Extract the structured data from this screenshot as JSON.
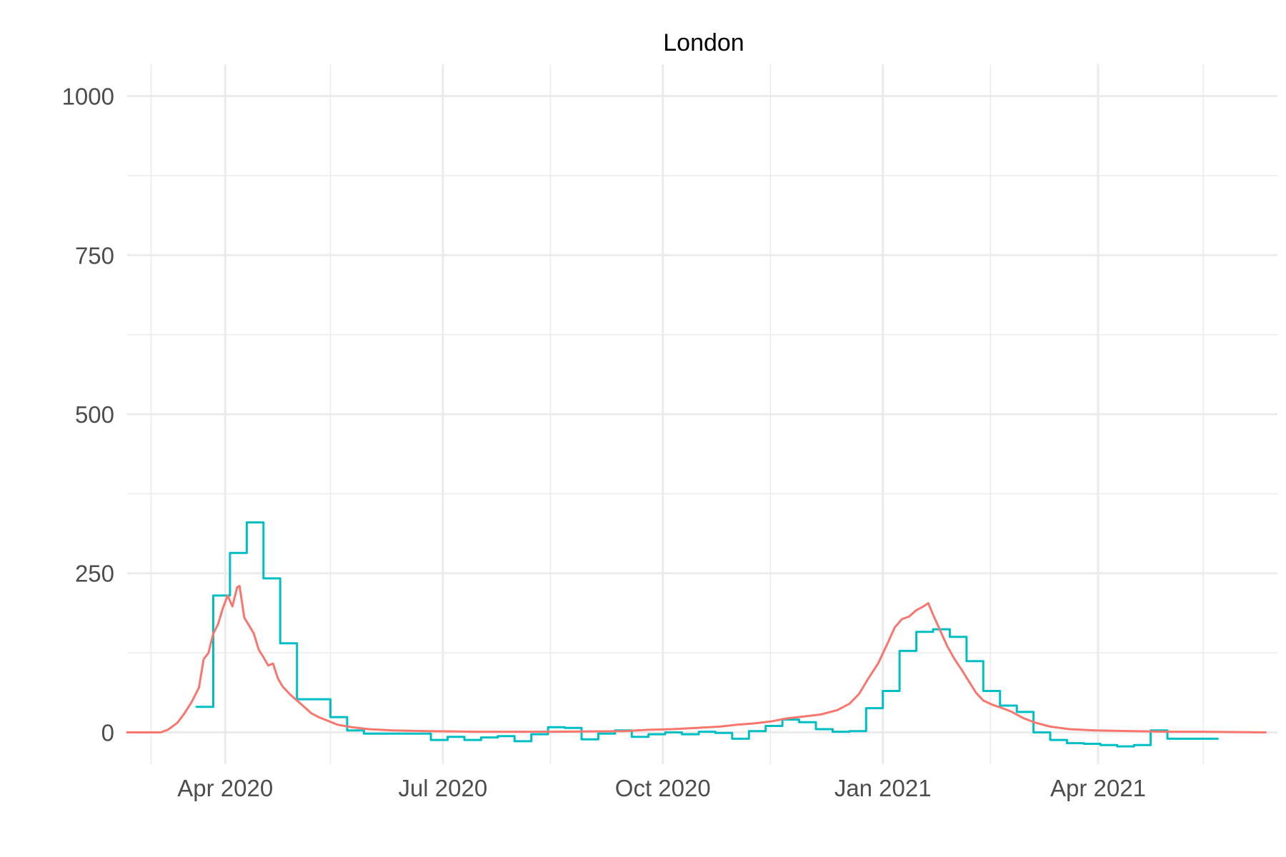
{
  "chart_data": {
    "type": "line",
    "title": "London",
    "xlabel": "",
    "ylabel": "",
    "x_range": [
      "2020-02-20",
      "2021-06-15"
    ],
    "ylim": [
      -50,
      1050
    ],
    "y_ticks": [
      0,
      250,
      500,
      750,
      1000
    ],
    "y_tick_labels": [
      "0",
      "250",
      "500",
      "750",
      "1000"
    ],
    "x_ticks": [
      {
        "date": "2020-04-01",
        "label": "Apr 2020"
      },
      {
        "date": "2020-07-01",
        "label": "Jul 2020"
      },
      {
        "date": "2020-10-01",
        "label": "Oct 2020"
      },
      {
        "date": "2021-01-01",
        "label": "Jan 2021"
      },
      {
        "date": "2021-04-01",
        "label": "Apr 2021"
      }
    ],
    "x_minor_ticks": [
      "2020-03-01",
      "2020-05-15",
      "2020-08-15",
      "2020-11-15",
      "2021-02-15",
      "2021-05-15"
    ],
    "grid": true,
    "legend": "none",
    "series": [
      {
        "color": "#00bfc4",
        "style": "step",
        "points": [
          [
            "2020-03-20",
            40
          ],
          [
            "2020-03-27",
            215
          ],
          [
            "2020-04-03",
            282
          ],
          [
            "2020-04-10",
            330
          ],
          [
            "2020-04-17",
            242
          ],
          [
            "2020-04-24",
            140
          ],
          [
            "2020-05-01",
            52
          ],
          [
            "2020-05-08",
            52
          ],
          [
            "2020-05-15",
            24
          ],
          [
            "2020-05-22",
            3
          ],
          [
            "2020-05-29",
            -2
          ],
          [
            "2020-06-05",
            -2
          ],
          [
            "2020-06-12",
            -2
          ],
          [
            "2020-06-19",
            -2
          ],
          [
            "2020-06-26",
            -12
          ],
          [
            "2020-07-03",
            -7
          ],
          [
            "2020-07-10",
            -12
          ],
          [
            "2020-07-17",
            -8
          ],
          [
            "2020-07-24",
            -6
          ],
          [
            "2020-07-31",
            -14
          ],
          [
            "2020-08-07",
            -3
          ],
          [
            "2020-08-14",
            8
          ],
          [
            "2020-08-21",
            7
          ],
          [
            "2020-08-28",
            -11
          ],
          [
            "2020-09-04",
            -2
          ],
          [
            "2020-09-11",
            3
          ],
          [
            "2020-09-18",
            -7
          ],
          [
            "2020-09-25",
            -3
          ],
          [
            "2020-10-02",
            0
          ],
          [
            "2020-10-09",
            -3
          ],
          [
            "2020-10-16",
            1
          ],
          [
            "2020-10-23",
            -1
          ],
          [
            "2020-10-30",
            -10
          ],
          [
            "2020-11-06",
            2
          ],
          [
            "2020-11-13",
            10
          ],
          [
            "2020-11-20",
            20
          ],
          [
            "2020-11-27",
            16
          ],
          [
            "2020-12-04",
            5
          ],
          [
            "2020-12-11",
            1
          ],
          [
            "2020-12-18",
            2
          ],
          [
            "2020-12-25",
            38
          ],
          [
            "2021-01-01",
            65
          ],
          [
            "2021-01-08",
            128
          ],
          [
            "2021-01-15",
            158
          ],
          [
            "2021-01-22",
            162
          ],
          [
            "2021-01-29",
            150
          ],
          [
            "2021-02-05",
            112
          ],
          [
            "2021-02-12",
            65
          ],
          [
            "2021-02-19",
            42
          ],
          [
            "2021-02-26",
            32
          ],
          [
            "2021-03-05",
            0
          ],
          [
            "2021-03-12",
            -12
          ],
          [
            "2021-03-19",
            -17
          ],
          [
            "2021-03-26",
            -18
          ],
          [
            "2021-04-02",
            -20
          ],
          [
            "2021-04-09",
            -22
          ],
          [
            "2021-04-16",
            -20
          ],
          [
            "2021-04-23",
            3
          ],
          [
            "2021-04-30",
            -10
          ],
          [
            "2021-05-07",
            -10
          ],
          [
            "2021-05-14",
            -10
          ]
        ]
      },
      {
        "color": "#f8766d",
        "style": "line",
        "points": [
          [
            "2020-02-20",
            0
          ],
          [
            "2020-03-05",
            0
          ],
          [
            "2020-03-08",
            4
          ],
          [
            "2020-03-12",
            15
          ],
          [
            "2020-03-15",
            30
          ],
          [
            "2020-03-18",
            48
          ],
          [
            "2020-03-21",
            70
          ],
          [
            "2020-03-23",
            115
          ],
          [
            "2020-03-25",
            125
          ],
          [
            "2020-03-27",
            155
          ],
          [
            "2020-03-29",
            170
          ],
          [
            "2020-03-31",
            195
          ],
          [
            "2020-04-02",
            215
          ],
          [
            "2020-04-04",
            198
          ],
          [
            "2020-04-06",
            228
          ],
          [
            "2020-04-07",
            230
          ],
          [
            "2020-04-09",
            180
          ],
          [
            "2020-04-11",
            168
          ],
          [
            "2020-04-13",
            155
          ],
          [
            "2020-04-15",
            130
          ],
          [
            "2020-04-17",
            118
          ],
          [
            "2020-04-19",
            105
          ],
          [
            "2020-04-21",
            108
          ],
          [
            "2020-04-23",
            85
          ],
          [
            "2020-04-25",
            72
          ],
          [
            "2020-04-28",
            60
          ],
          [
            "2020-05-01",
            50
          ],
          [
            "2020-05-04",
            40
          ],
          [
            "2020-05-07",
            30
          ],
          [
            "2020-05-10",
            24
          ],
          [
            "2020-05-14",
            18
          ],
          [
            "2020-05-18",
            12
          ],
          [
            "2020-05-24",
            8
          ],
          [
            "2020-05-31",
            5
          ],
          [
            "2020-06-10",
            3
          ],
          [
            "2020-06-25",
            2
          ],
          [
            "2020-07-15",
            1
          ],
          [
            "2020-08-15",
            1
          ],
          [
            "2020-09-15",
            2
          ],
          [
            "2020-09-25",
            4
          ],
          [
            "2020-10-05",
            5
          ],
          [
            "2020-10-15",
            7
          ],
          [
            "2020-10-25",
            9
          ],
          [
            "2020-11-01",
            12
          ],
          [
            "2020-11-08",
            14
          ],
          [
            "2020-11-15",
            17
          ],
          [
            "2020-11-22",
            22
          ],
          [
            "2020-11-29",
            25
          ],
          [
            "2020-12-06",
            28
          ],
          [
            "2020-12-13",
            35
          ],
          [
            "2020-12-18",
            45
          ],
          [
            "2020-12-22",
            60
          ],
          [
            "2020-12-26",
            85
          ],
          [
            "2020-12-30",
            108
          ],
          [
            "2021-01-03",
            140
          ],
          [
            "2021-01-06",
            165
          ],
          [
            "2021-01-09",
            178
          ],
          [
            "2021-01-12",
            182
          ],
          [
            "2021-01-15",
            192
          ],
          [
            "2021-01-18",
            198
          ],
          [
            "2021-01-20",
            203
          ],
          [
            "2021-01-22",
            185
          ],
          [
            "2021-01-25",
            160
          ],
          [
            "2021-01-28",
            135
          ],
          [
            "2021-01-31",
            115
          ],
          [
            "2021-02-03",
            98
          ],
          [
            "2021-02-06",
            80
          ],
          [
            "2021-02-09",
            62
          ],
          [
            "2021-02-12",
            50
          ],
          [
            "2021-02-16",
            43
          ],
          [
            "2021-02-20",
            38
          ],
          [
            "2021-02-24",
            32
          ],
          [
            "2021-03-01",
            22
          ],
          [
            "2021-03-06",
            15
          ],
          [
            "2021-03-12",
            9
          ],
          [
            "2021-03-20",
            5
          ],
          [
            "2021-03-31",
            3
          ],
          [
            "2021-04-15",
            2
          ],
          [
            "2021-05-01",
            1
          ],
          [
            "2021-05-15",
            1
          ],
          [
            "2021-06-10",
            0
          ]
        ]
      }
    ]
  }
}
